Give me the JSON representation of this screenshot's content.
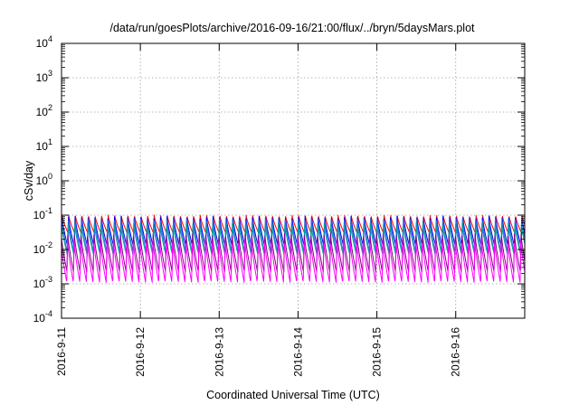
{
  "chart_data": {
    "type": "line",
    "title": "/data/run/goesPlots/archive/2016-09-16/21:00/flux/../bryn/5daysMars.plot",
    "xlabel": "Coordinated Universal Time (UTC)",
    "ylabel": "cSv/day",
    "yscale": "log",
    "ylim": [
      0.0001,
      10000
    ],
    "xlim": [
      "2016-09-11",
      "2016-09-16T21:00"
    ],
    "grid": true,
    "x_ticks": [
      "2016-9-11",
      "2016-9-12",
      "2016-9-13",
      "2016-9-14",
      "2016-9-15",
      "2016-9-16"
    ],
    "y_ticks": [
      {
        "base": "10",
        "exp": "-4"
      },
      {
        "base": "10",
        "exp": "-3"
      },
      {
        "base": "10",
        "exp": "-2"
      },
      {
        "base": "10",
        "exp": "-1"
      },
      {
        "base": "10",
        "exp": "0"
      },
      {
        "base": "10",
        "exp": "1"
      },
      {
        "base": "10",
        "exp": "2"
      },
      {
        "base": "10",
        "exp": "3"
      },
      {
        "base": "10",
        "exp": "4"
      }
    ],
    "series": [
      {
        "color": "#ff0000",
        "peak": 0.1,
        "trough": 0.03
      },
      {
        "color": "#0000ff",
        "peak": 0.095,
        "trough": 0.012
      },
      {
        "color": "#2f6fcf",
        "peak": 0.085,
        "trough": 0.008
      },
      {
        "color": "#00a0a0",
        "peak": 0.06,
        "trough": 0.007
      },
      {
        "color": "#7f007f",
        "peak": 0.03,
        "trough": 0.0022
      },
      {
        "color": "#ff00ff",
        "peak": 0.02,
        "trough": 0.0011
      }
    ],
    "cycles_per_day": 12.0
  }
}
